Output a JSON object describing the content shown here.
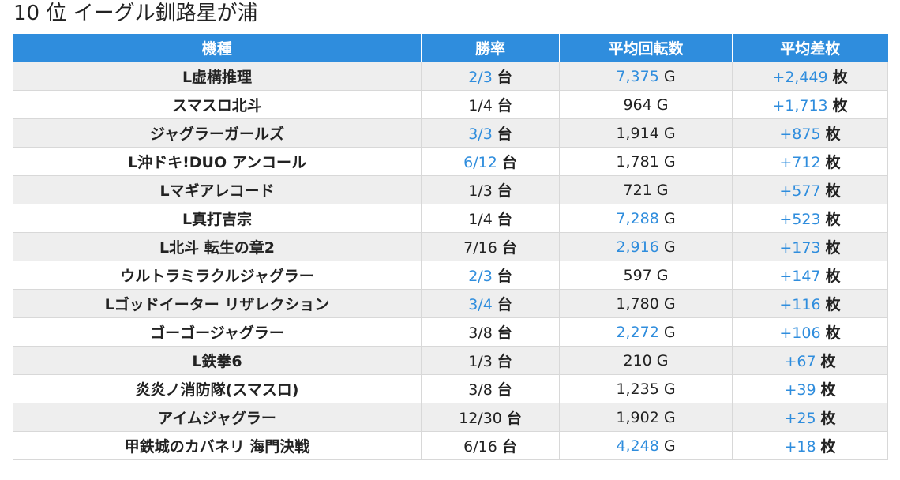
{
  "title": "10 位 イーグル釧路星が浦",
  "headers": [
    "機種",
    "勝率",
    "平均回転数",
    "平均差枚"
  ],
  "units": {
    "rate": "台",
    "spin": "G",
    "diff": "枚"
  },
  "colors": {
    "header_bg": "#2f8ddd",
    "highlight": "#2f8ddd",
    "row_alt": "#eeeeee"
  },
  "rows": [
    {
      "name": "L虚構推理",
      "rate": "2/3",
      "rate_hl": true,
      "spin": "7,375",
      "spin_hl": true,
      "diff": "+2,449",
      "diff_hl": true
    },
    {
      "name": "スマスロ北斗",
      "rate": "1/4",
      "rate_hl": false,
      "spin": "964",
      "spin_hl": false,
      "diff": "+1,713",
      "diff_hl": true
    },
    {
      "name": "ジャグラーガールズ",
      "rate": "3/3",
      "rate_hl": true,
      "spin": "1,914",
      "spin_hl": false,
      "diff": "+875",
      "diff_hl": true
    },
    {
      "name": "L沖ドキ!DUO アンコール",
      "rate": "6/12",
      "rate_hl": true,
      "spin": "1,781",
      "spin_hl": false,
      "diff": "+712",
      "diff_hl": true
    },
    {
      "name": "Lマギアレコード",
      "rate": "1/3",
      "rate_hl": false,
      "spin": "721",
      "spin_hl": false,
      "diff": "+577",
      "diff_hl": true
    },
    {
      "name": "L真打吉宗",
      "rate": "1/4",
      "rate_hl": false,
      "spin": "7,288",
      "spin_hl": true,
      "diff": "+523",
      "diff_hl": true
    },
    {
      "name": "L北斗 転生の章2",
      "rate": "7/16",
      "rate_hl": false,
      "spin": "2,916",
      "spin_hl": true,
      "diff": "+173",
      "diff_hl": true
    },
    {
      "name": "ウルトラミラクルジャグラー",
      "rate": "2/3",
      "rate_hl": true,
      "spin": "597",
      "spin_hl": false,
      "diff": "+147",
      "diff_hl": true
    },
    {
      "name": "Lゴッドイーター リザレクション",
      "rate": "3/4",
      "rate_hl": true,
      "spin": "1,780",
      "spin_hl": false,
      "diff": "+116",
      "diff_hl": true
    },
    {
      "name": "ゴーゴージャグラー",
      "rate": "3/8",
      "rate_hl": false,
      "spin": "2,272",
      "spin_hl": true,
      "diff": "+106",
      "diff_hl": true
    },
    {
      "name": "L鉄拳6",
      "rate": "1/3",
      "rate_hl": false,
      "spin": "210",
      "spin_hl": false,
      "diff": "+67",
      "diff_hl": true
    },
    {
      "name": "炎炎ノ消防隊(スマスロ)",
      "rate": "3/8",
      "rate_hl": false,
      "spin": "1,235",
      "spin_hl": false,
      "diff": "+39",
      "diff_hl": true
    },
    {
      "name": "アイムジャグラー",
      "rate": "12/30",
      "rate_hl": false,
      "spin": "1,902",
      "spin_hl": false,
      "diff": "+25",
      "diff_hl": true
    },
    {
      "name": "甲鉄城のカバネリ 海門決戦",
      "rate": "6/16",
      "rate_hl": false,
      "spin": "4,248",
      "spin_hl": true,
      "diff": "+18",
      "diff_hl": true
    }
  ]
}
